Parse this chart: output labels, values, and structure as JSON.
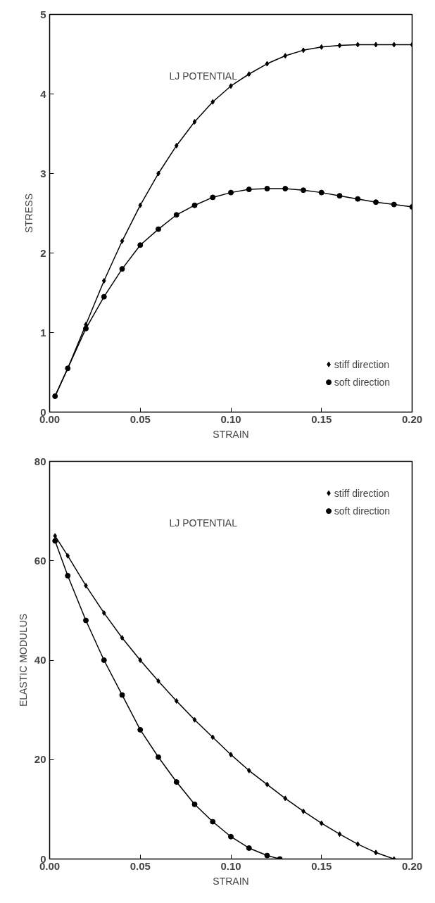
{
  "chart_data": [
    {
      "type": "line",
      "xlabel": "STRAIN",
      "ylabel": "STRESS",
      "annotations": [
        "LJ POTENTIAL"
      ],
      "legend": "bottom right",
      "grid": false,
      "xlim": [
        0,
        0.2
      ],
      "ylim": [
        0,
        5
      ],
      "xticks": [
        {
          "value": 0,
          "label": "0.00"
        },
        {
          "value": 0.05,
          "label": "0.05"
        },
        {
          "value": 0.1,
          "label": "0.10"
        },
        {
          "value": 0.15,
          "label": "0.15"
        },
        {
          "value": 0.2,
          "label": "0.20"
        }
      ],
      "yticks": [
        0,
        1,
        2,
        3,
        4,
        5
      ],
      "series": [
        {
          "name": "stiff direction",
          "color": "#000000",
          "marker": "diamond",
          "x": [
            0.003,
            0.01,
            0.02,
            0.03,
            0.04,
            0.05,
            0.06,
            0.07,
            0.08,
            0.09,
            0.1,
            0.11,
            0.12,
            0.13,
            0.14,
            0.15,
            0.16,
            0.17,
            0.18,
            0.19,
            0.2
          ],
          "values": [
            0.2,
            0.55,
            1.1,
            1.65,
            2.15,
            2.6,
            3.0,
            3.35,
            3.65,
            3.9,
            4.1,
            4.25,
            4.38,
            4.48,
            4.55,
            4.59,
            4.61,
            4.62,
            4.62,
            4.62,
            4.62
          ]
        },
        {
          "name": "soft direction",
          "color": "#000000",
          "marker": "circle",
          "x": [
            0.003,
            0.01,
            0.02,
            0.03,
            0.04,
            0.05,
            0.06,
            0.07,
            0.08,
            0.09,
            0.1,
            0.11,
            0.12,
            0.13,
            0.14,
            0.15,
            0.16,
            0.17,
            0.18,
            0.19,
            0.2
          ],
          "values": [
            0.2,
            0.55,
            1.05,
            1.45,
            1.8,
            2.1,
            2.3,
            2.48,
            2.6,
            2.7,
            2.76,
            2.8,
            2.81,
            2.81,
            2.79,
            2.76,
            2.72,
            2.68,
            2.64,
            2.61,
            2.58
          ]
        }
      ]
    },
    {
      "type": "line",
      "xlabel": "STRAIN",
      "ylabel": "ELASTIC MODULUS",
      "annotations": [
        "LJ POTENTIAL"
      ],
      "legend": "top right",
      "grid": false,
      "xlim": [
        0,
        0.2
      ],
      "ylim": [
        0,
        80
      ],
      "xticks": [
        {
          "value": 0,
          "label": "0.00"
        },
        {
          "value": 0.05,
          "label": "0.05"
        },
        {
          "value": 0.1,
          "label": "0.10"
        },
        {
          "value": 0.15,
          "label": "0.15"
        },
        {
          "value": 0.2,
          "label": "0.20"
        }
      ],
      "yticks": [
        0,
        20,
        40,
        60,
        80
      ],
      "series": [
        {
          "name": "stiff direction",
          "color": "#000000",
          "marker": "diamond",
          "x": [
            0.003,
            0.01,
            0.02,
            0.03,
            0.04,
            0.05,
            0.06,
            0.07,
            0.08,
            0.09,
            0.1,
            0.11,
            0.12,
            0.13,
            0.14,
            0.15,
            0.16,
            0.17,
            0.18,
            0.19
          ],
          "values": [
            65,
            61,
            55,
            49.5,
            44.5,
            40,
            35.8,
            31.8,
            28,
            24.5,
            21,
            17.8,
            15,
            12.2,
            9.6,
            7.2,
            5,
            3,
            1.3,
            0
          ]
        },
        {
          "name": "soft direction",
          "color": "#000000",
          "marker": "circle",
          "x": [
            0.003,
            0.01,
            0.02,
            0.03,
            0.04,
            0.05,
            0.06,
            0.07,
            0.08,
            0.09,
            0.1,
            0.11,
            0.12,
            0.127
          ],
          "values": [
            64,
            57,
            48,
            40,
            33,
            26,
            20.5,
            15.5,
            11,
            7.5,
            4.5,
            2.2,
            0.7,
            0
          ]
        }
      ]
    }
  ]
}
